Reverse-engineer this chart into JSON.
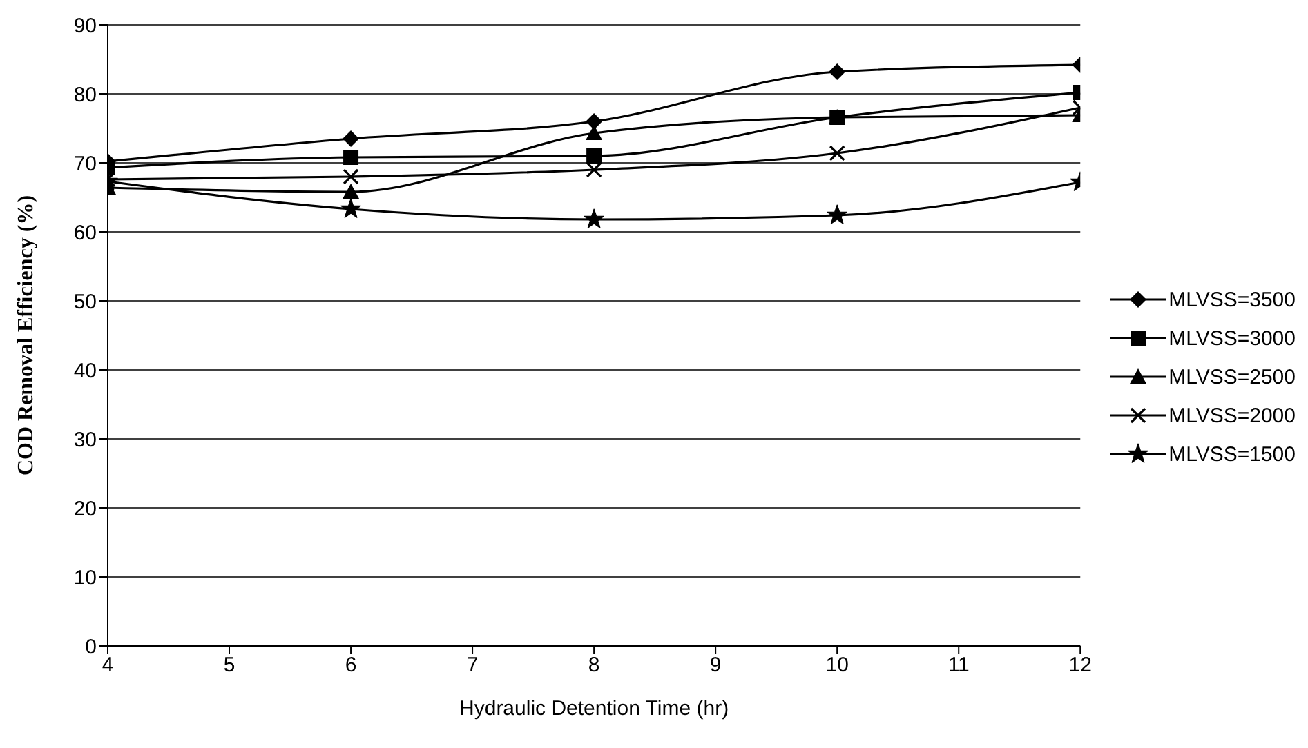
{
  "chart_data": {
    "type": "line",
    "xlabel": "Hydraulic Detention Time (hr)",
    "ylabel": "COD Removal Efficiency (%)",
    "x": [
      4,
      6,
      8,
      10,
      12
    ],
    "series": [
      {
        "name": "MLVSS=3500",
        "color": "#000000",
        "marker": "diamond",
        "values": [
          70.2,
          73.5,
          76,
          83.2,
          84.2
        ]
      },
      {
        "name": "MLVSS=3000",
        "color": "#000000",
        "marker": "square",
        "values": [
          69.3,
          70.8,
          71,
          76.6,
          80.2
        ]
      },
      {
        "name": "MLVSS=2500",
        "color": "#000000",
        "marker": "triangle",
        "values": [
          66.4,
          65.8,
          74.3,
          76.6,
          76.9
        ]
      },
      {
        "name": "MLVSS=2000",
        "color": "#000000",
        "marker": "cross",
        "values": [
          67.6,
          68,
          69,
          71.4,
          78
        ]
      },
      {
        "name": "MLVSS=1500",
        "color": "#000000",
        "marker": "star",
        "values": [
          67.3,
          63.3,
          61.8,
          62.4,
          67.2
        ]
      }
    ],
    "xlim": [
      4,
      12
    ],
    "xticks": [
      4,
      5,
      6,
      7,
      8,
      9,
      10,
      11,
      12
    ],
    "ylim": [
      0,
      90
    ],
    "yticks": [
      0,
      10,
      20,
      30,
      40,
      50,
      60,
      70,
      80,
      90
    ],
    "grid": "y",
    "legend": "right",
    "line_style": "solid"
  }
}
